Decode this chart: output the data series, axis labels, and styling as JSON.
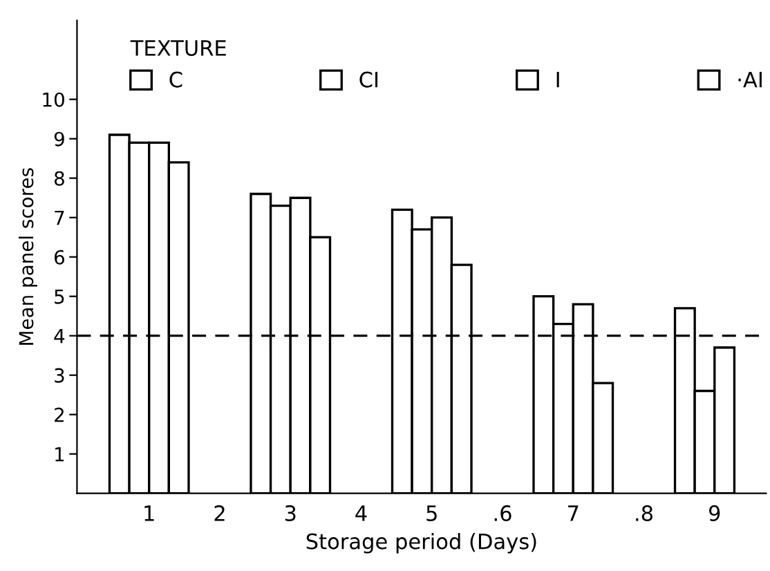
{
  "chart_data": {
    "type": "bar",
    "xlabel": "Storage period (Days)",
    "ylabel": "Mean panel scores",
    "legend_title": "TEXTURE",
    "categories": [
      "1",
      "2",
      "3",
      "4",
      "5",
      ".6",
      "7",
      ".8",
      "9"
    ],
    "series": [
      {
        "name": "C",
        "color": "#ffffff",
        "values": [
          9.1,
          null,
          7.6,
          null,
          7.2,
          null,
          5.0,
          null,
          4.7
        ]
      },
      {
        "name": "CI",
        "color": "#ffffff",
        "values": [
          8.9,
          null,
          7.3,
          null,
          6.7,
          null,
          4.3,
          null,
          2.6
        ]
      },
      {
        "name": "I",
        "color": "#ffffff",
        "values": [
          8.9,
          null,
          7.5,
          null,
          7.0,
          null,
          4.8,
          null,
          3.7
        ]
      },
      {
        "name": "·AI",
        "color": "#ffffff",
        "values": [
          8.4,
          null,
          6.5,
          null,
          5.8,
          null,
          2.8,
          null,
          null
        ]
      }
    ],
    "ylim": [
      0,
      12
    ],
    "yticks": [
      1,
      2,
      3,
      4,
      5,
      6,
      7,
      8,
      9,
      10
    ],
    "ref_lines": [
      {
        "axis": "y",
        "value": 4,
        "line_style": "dashed"
      }
    ],
    "legend": "top left",
    "grid": false
  }
}
